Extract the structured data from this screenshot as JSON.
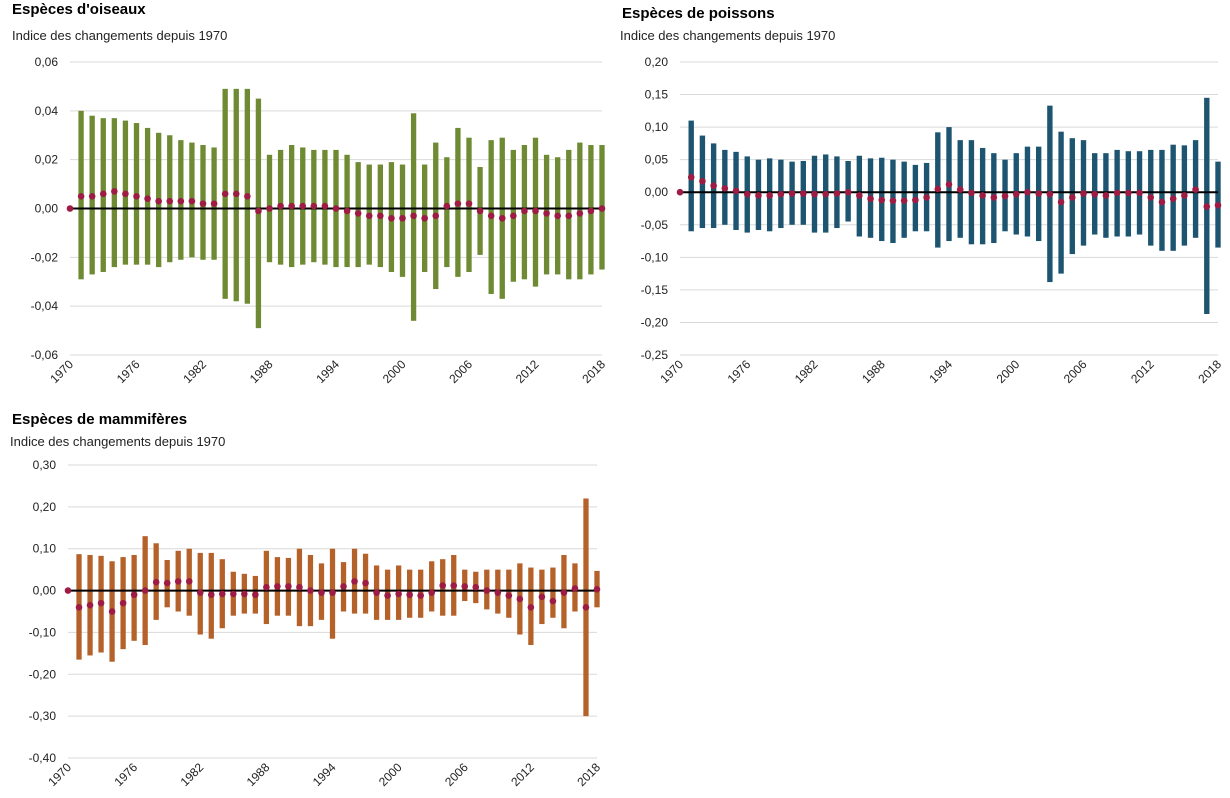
{
  "chart_data": [
    {
      "type": "range",
      "title": "Espèces d'oiseaux",
      "subtitle": "Indice des changements depuis 1970",
      "bar_color": "#6e8b33",
      "dot_color": "#9e1c44",
      "grid": true,
      "xlim": [
        1970,
        2018
      ],
      "xticks": [
        1970,
        1976,
        1982,
        1988,
        1994,
        2000,
        2006,
        2012,
        2018
      ],
      "ylim": [
        -0.06,
        0.06
      ],
      "yticks": [
        {
          "value": -0.06,
          "label": "-0,06"
        },
        {
          "value": -0.04,
          "label": "-0,04"
        },
        {
          "value": -0.02,
          "label": "-0,02"
        },
        {
          "value": 0,
          "label": "0,00"
        },
        {
          "value": 0.02,
          "label": "0,02"
        },
        {
          "value": 0.04,
          "label": "0,04"
        },
        {
          "value": 0.06,
          "label": "0,06"
        }
      ],
      "x": [
        1970,
        1971,
        1972,
        1973,
        1974,
        1975,
        1976,
        1977,
        1978,
        1979,
        1980,
        1981,
        1982,
        1983,
        1984,
        1985,
        1986,
        1987,
        1988,
        1989,
        1990,
        1991,
        1992,
        1993,
        1994,
        1995,
        1996,
        1997,
        1998,
        1999,
        2000,
        2001,
        2002,
        2003,
        2004,
        2005,
        2006,
        2007,
        2008,
        2009,
        2010,
        2011,
        2012,
        2013,
        2014,
        2015,
        2016,
        2017,
        2018
      ],
      "values": [
        0,
        0.005,
        0.005,
        0.006,
        0.007,
        0.006,
        0.005,
        0.004,
        0.003,
        0.003,
        0.003,
        0.003,
        0.002,
        0.002,
        0.006,
        0.006,
        0.005,
        -0.001,
        0,
        0.001,
        0.001,
        0.001,
        0.001,
        0.001,
        0,
        -0.001,
        -0.002,
        -0.003,
        -0.003,
        -0.004,
        -0.004,
        -0.003,
        -0.004,
        -0.003,
        0.001,
        0.002,
        0.002,
        -0.001,
        -0.003,
        -0.004,
        -0.003,
        -0.001,
        -0.001,
        -0.002,
        -0.003,
        -0.003,
        -0.002,
        -0.001,
        0
      ],
      "low": [
        null,
        -0.029,
        -0.027,
        -0.026,
        -0.024,
        -0.023,
        -0.023,
        -0.023,
        -0.024,
        -0.022,
        -0.021,
        -0.02,
        -0.021,
        -0.021,
        -0.037,
        -0.038,
        -0.039,
        -0.049,
        -0.022,
        -0.023,
        -0.024,
        -0.023,
        -0.022,
        -0.023,
        -0.024,
        -0.024,
        -0.024,
        -0.023,
        -0.024,
        -0.026,
        -0.028,
        -0.046,
        -0.026,
        -0.033,
        -0.024,
        -0.028,
        -0.026,
        -0.019,
        -0.035,
        -0.037,
        -0.03,
        -0.029,
        -0.032,
        -0.027,
        -0.027,
        -0.029,
        -0.029,
        -0.027,
        -0.025
      ],
      "high": [
        null,
        0.04,
        0.038,
        0.037,
        0.037,
        0.036,
        0.035,
        0.033,
        0.031,
        0.03,
        0.028,
        0.027,
        0.026,
        0.025,
        0.049,
        0.049,
        0.049,
        0.045,
        0.022,
        0.024,
        0.026,
        0.025,
        0.024,
        0.024,
        0.024,
        0.022,
        0.019,
        0.018,
        0.018,
        0.019,
        0.018,
        0.039,
        0.018,
        0.027,
        0.021,
        0.033,
        0.029,
        0.017,
        0.028,
        0.029,
        0.024,
        0.026,
        0.029,
        0.022,
        0.021,
        0.024,
        0.027,
        0.026,
        0.026
      ]
    },
    {
      "type": "range",
      "title": "Espèces de poissons",
      "subtitle": "Indice des changements depuis 1970",
      "bar_color": "#1d5571",
      "dot_color": "#9e1c44",
      "grid": true,
      "xlim": [
        1970,
        2018
      ],
      "xticks": [
        1970,
        1976,
        1982,
        1988,
        1994,
        2000,
        2006,
        2012,
        2018
      ],
      "ylim": [
        -0.25,
        0.2
      ],
      "yticks": [
        {
          "value": -0.25,
          "label": "-0,25"
        },
        {
          "value": -0.2,
          "label": "-0,20"
        },
        {
          "value": -0.15,
          "label": "-0,15"
        },
        {
          "value": -0.1,
          "label": "-0,10"
        },
        {
          "value": -0.05,
          "label": "-0,05"
        },
        {
          "value": 0,
          "label": "0,00"
        },
        {
          "value": 0.05,
          "label": "0,05"
        },
        {
          "value": 0.1,
          "label": "0,10"
        },
        {
          "value": 0.15,
          "label": "0,15"
        },
        {
          "value": 0.2,
          "label": "0,20"
        }
      ],
      "x": [
        1970,
        1971,
        1972,
        1973,
        1974,
        1975,
        1976,
        1977,
        1978,
        1979,
        1980,
        1981,
        1982,
        1983,
        1984,
        1985,
        1986,
        1987,
        1988,
        1989,
        1990,
        1991,
        1992,
        1993,
        1994,
        1995,
        1996,
        1997,
        1998,
        1999,
        2000,
        2001,
        2002,
        2003,
        2004,
        2005,
        2006,
        2007,
        2008,
        2009,
        2010,
        2011,
        2012,
        2013,
        2014,
        2015,
        2016,
        2017,
        2018
      ],
      "values": [
        0,
        0.023,
        0.017,
        0.01,
        0.006,
        0.002,
        -0.003,
        -0.005,
        -0.005,
        -0.003,
        -0.002,
        -0.002,
        -0.003,
        -0.003,
        -0.002,
        0,
        -0.005,
        -0.01,
        -0.012,
        -0.013,
        -0.013,
        -0.012,
        -0.008,
        0.005,
        0.012,
        0.004,
        -0.001,
        -0.005,
        -0.008,
        -0.006,
        -0.003,
        0,
        -0.002,
        -0.003,
        -0.015,
        -0.008,
        -0.002,
        -0.003,
        -0.005,
        -0.001,
        -0.001,
        -0.001,
        -0.008,
        -0.015,
        -0.01,
        -0.005,
        0.004,
        -0.022,
        -0.02
      ],
      "low": [
        null,
        -0.06,
        -0.055,
        -0.055,
        -0.05,
        -0.058,
        -0.062,
        -0.058,
        -0.06,
        -0.055,
        -0.05,
        -0.05,
        -0.062,
        -0.062,
        -0.055,
        -0.045,
        -0.068,
        -0.07,
        -0.075,
        -0.078,
        -0.07,
        -0.06,
        -0.06,
        -0.085,
        -0.075,
        -0.07,
        -0.08,
        -0.08,
        -0.078,
        -0.06,
        -0.065,
        -0.068,
        -0.075,
        -0.138,
        -0.125,
        -0.095,
        -0.082,
        -0.065,
        -0.07,
        -0.068,
        -0.068,
        -0.065,
        -0.082,
        -0.09,
        -0.09,
        -0.082,
        -0.07,
        -0.187,
        -0.085
      ],
      "high": [
        null,
        0.11,
        0.087,
        0.075,
        0.065,
        0.062,
        0.055,
        0.05,
        0.052,
        0.05,
        0.047,
        0.048,
        0.056,
        0.058,
        0.055,
        0.048,
        0.056,
        0.052,
        0.053,
        0.05,
        0.047,
        0.042,
        0.045,
        0.092,
        0.1,
        0.08,
        0.08,
        0.068,
        0.06,
        0.05,
        0.06,
        0.07,
        0.07,
        0.133,
        0.093,
        0.083,
        0.08,
        0.06,
        0.06,
        0.065,
        0.063,
        0.063,
        0.065,
        0.065,
        0.073,
        0.072,
        0.08,
        0.145,
        0.047
      ]
    },
    {
      "type": "range",
      "title": "Espèces de mammifères",
      "subtitle": "Indice des changements depuis 1970",
      "bar_color": "#b5612a",
      "dot_color": "#9e1c44",
      "grid": true,
      "xlim": [
        1970,
        2018
      ],
      "xticks": [
        1970,
        1976,
        1982,
        1988,
        1994,
        2000,
        2006,
        2012,
        2018
      ],
      "ylim": [
        -0.4,
        0.3
      ],
      "yticks": [
        {
          "value": -0.4,
          "label": "-0,40"
        },
        {
          "value": -0.3,
          "label": "-0,30"
        },
        {
          "value": -0.2,
          "label": "-0,20"
        },
        {
          "value": -0.1,
          "label": "-0,10"
        },
        {
          "value": 0,
          "label": "0,00"
        },
        {
          "value": 0.1,
          "label": "0,10"
        },
        {
          "value": 0.2,
          "label": "0,20"
        },
        {
          "value": 0.3,
          "label": "0,30"
        }
      ],
      "x": [
        1970,
        1971,
        1972,
        1973,
        1974,
        1975,
        1976,
        1977,
        1978,
        1979,
        1980,
        1981,
        1982,
        1983,
        1984,
        1985,
        1986,
        1987,
        1988,
        1989,
        1990,
        1991,
        1992,
        1993,
        1994,
        1995,
        1996,
        1997,
        1998,
        1999,
        2000,
        2001,
        2002,
        2003,
        2004,
        2005,
        2006,
        2007,
        2008,
        2009,
        2010,
        2011,
        2012,
        2013,
        2014,
        2015,
        2016,
        2017,
        2018
      ],
      "values": [
        0,
        -0.04,
        -0.035,
        -0.03,
        -0.05,
        -0.03,
        -0.01,
        0,
        0.02,
        0.018,
        0.022,
        0.022,
        -0.005,
        -0.01,
        -0.008,
        -0.008,
        -0.008,
        -0.01,
        0.008,
        0.01,
        0.01,
        0.008,
        0,
        -0.005,
        -0.005,
        0.01,
        0.022,
        0.018,
        -0.005,
        -0.012,
        -0.008,
        -0.01,
        -0.012,
        -0.005,
        0.012,
        0.012,
        0.01,
        0.008,
        0,
        -0.005,
        -0.012,
        -0.02,
        -0.04,
        -0.015,
        -0.025,
        -0.005,
        0.005,
        -0.04,
        0.003
      ],
      "low": [
        null,
        -0.165,
        -0.155,
        -0.148,
        -0.17,
        -0.14,
        -0.12,
        -0.13,
        -0.07,
        -0.04,
        -0.05,
        -0.06,
        -0.105,
        -0.115,
        -0.09,
        -0.06,
        -0.055,
        -0.055,
        -0.08,
        -0.06,
        -0.06,
        -0.085,
        -0.085,
        -0.07,
        -0.115,
        -0.05,
        -0.055,
        -0.055,
        -0.07,
        -0.07,
        -0.07,
        -0.065,
        -0.065,
        -0.05,
        -0.06,
        -0.06,
        -0.025,
        -0.03,
        -0.045,
        -0.055,
        -0.065,
        -0.105,
        -0.13,
        -0.08,
        -0.065,
        -0.09,
        -0.05,
        -0.3,
        -0.04
      ],
      "high": [
        null,
        0.087,
        0.085,
        0.083,
        0.07,
        0.08,
        0.085,
        0.13,
        0.113,
        0.073,
        0.095,
        0.1,
        0.09,
        0.09,
        0.075,
        0.045,
        0.04,
        0.035,
        0.095,
        0.08,
        0.078,
        0.1,
        0.085,
        0.065,
        0.1,
        0.068,
        0.1,
        0.088,
        0.06,
        0.05,
        0.06,
        0.05,
        0.05,
        0.07,
        0.075,
        0.085,
        0.05,
        0.045,
        0.05,
        0.05,
        0.05,
        0.065,
        0.055,
        0.05,
        0.055,
        0.085,
        0.065,
        0.22,
        0.047
      ]
    }
  ]
}
